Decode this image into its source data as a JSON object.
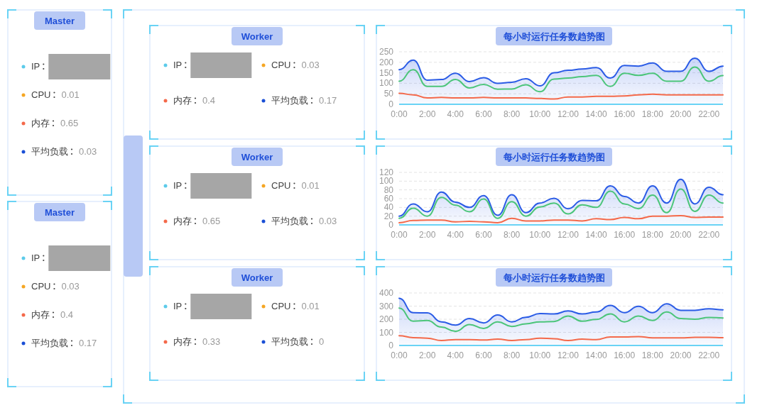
{
  "chart_data": [
    {
      "type": "other",
      "title": "Master",
      "categories": [
        "IP",
        "CPU",
        "内存",
        "平均负载"
      ],
      "values": [
        null,
        0.01,
        0.65,
        0.03
      ],
      "data_labels": true,
      "colors": [
        "#5ccbea",
        "#f5a623",
        "#f4694a",
        "#1a4fd6"
      ]
    },
    {
      "type": "other",
      "title": "Master",
      "categories": [
        "IP",
        "CPU",
        "内存",
        "平均负载"
      ],
      "values": [
        null,
        0.03,
        0.4,
        0.17
      ],
      "data_labels": true,
      "colors": [
        "#5ccbea",
        "#f5a623",
        "#f4694a",
        "#1a4fd6"
      ]
    },
    {
      "type": "other",
      "title": "Worker",
      "categories": [
        "IP",
        "CPU",
        "内存",
        "平均负载"
      ],
      "values": [
        null,
        0.03,
        0.4,
        0.17
      ],
      "data_labels": true,
      "colors": [
        "#5ccbea",
        "#f5a623",
        "#f4694a",
        "#1a4fd6"
      ]
    },
    {
      "type": "area",
      "title": "每小时运行任务数趋势图",
      "categories": [
        "0:00",
        null,
        "2:00",
        null,
        "4:00",
        null,
        "6:00",
        null,
        "8:00",
        null,
        "10:00",
        null,
        "12:00",
        null,
        "14:00",
        null,
        "16:00",
        null,
        "18:00",
        null,
        "20:00",
        null,
        "22:00",
        null
      ],
      "ylim": [
        0,
        250
      ],
      "yticks": [
        0,
        50,
        100,
        150,
        200,
        250
      ],
      "grid": "y",
      "series": [
        {
          "color": "#2b5ce6",
          "values": [
            165,
            210,
            115,
            118,
            148,
            108,
            127,
            100,
            105,
            122,
            88,
            150,
            162,
            168,
            175,
            125,
            185,
            182,
            197,
            157,
            157,
            220,
            157,
            182
          ]
        },
        {
          "type": "line",
          "color": "#4cc57a",
          "values": [
            110,
            165,
            85,
            85,
            118,
            78,
            95,
            72,
            73,
            93,
            60,
            120,
            125,
            132,
            138,
            85,
            148,
            138,
            148,
            110,
            110,
            177,
            110,
            137
          ]
        },
        {
          "type": "line",
          "color": "#f4694a",
          "values": [
            52,
            45,
            30,
            33,
            30,
            30,
            33,
            30,
            30,
            30,
            28,
            25,
            35,
            35,
            38,
            38,
            40,
            45,
            48,
            45,
            45,
            45,
            45,
            45
          ]
        }
      ]
    },
    {
      "type": "other",
      "title": "Worker",
      "categories": [
        "IP",
        "CPU",
        "内存",
        "平均负载"
      ],
      "values": [
        null,
        0.01,
        0.65,
        0.03
      ],
      "data_labels": true,
      "colors": [
        "#5ccbea",
        "#f5a623",
        "#f4694a",
        "#1a4fd6"
      ]
    },
    {
      "type": "area",
      "title": "每小时运行任务数趋势图",
      "categories": [
        "0:00",
        null,
        "2:00",
        null,
        "4:00",
        null,
        "6:00",
        null,
        "8:00",
        null,
        "10:00",
        null,
        "12:00",
        null,
        "14:00",
        null,
        "16:00",
        null,
        "18:00",
        null,
        "20:00",
        null,
        "22:00",
        null
      ],
      "ylim": [
        0,
        120
      ],
      "yticks": [
        0,
        20,
        40,
        60,
        80,
        100,
        120
      ],
      "grid": "y",
      "series": [
        {
          "color": "#2b5ce6",
          "values": [
            20,
            48,
            30,
            75,
            52,
            40,
            67,
            22,
            69,
            28,
            50,
            61,
            37,
            56,
            55,
            89,
            65,
            50,
            89,
            50,
            104,
            48,
            86,
            69
          ]
        },
        {
          "type": "line",
          "color": "#4cc57a",
          "values": [
            15,
            38,
            20,
            63,
            45,
            30,
            59,
            15,
            53,
            20,
            41,
            50,
            25,
            46,
            40,
            77,
            48,
            37,
            68,
            28,
            82,
            31,
            68,
            50
          ]
        },
        {
          "type": "line",
          "color": "#f4694a",
          "values": [
            5,
            10,
            11,
            11,
            7,
            8,
            7,
            5,
            15,
            9,
            9,
            11,
            11,
            9,
            14,
            12,
            17,
            14,
            20,
            20,
            21,
            17,
            18,
            18
          ]
        }
      ]
    },
    {
      "type": "other",
      "title": "Worker",
      "categories": [
        "IP",
        "CPU",
        "内存",
        "平均负载"
      ],
      "values": [
        null,
        0.01,
        0.33,
        0
      ],
      "data_labels": true,
      "colors": [
        "#5ccbea",
        "#f5a623",
        "#f4694a",
        "#1a4fd6"
      ]
    },
    {
      "type": "area",
      "title": "每小时运行任务数趋势图",
      "categories": [
        "0:00",
        null,
        "2:00",
        null,
        "4:00",
        null,
        "6:00",
        null,
        "8:00",
        null,
        "10:00",
        null,
        "12:00",
        null,
        "14:00",
        null,
        "16:00",
        null,
        "18:00",
        null,
        "20:00",
        null,
        "22:00",
        null
      ],
      "ylim": [
        0,
        400
      ],
      "yticks": [
        0,
        100,
        200,
        300,
        400
      ],
      "grid": "y",
      "series": [
        {
          "color": "#2b5ce6",
          "values": [
            360,
            250,
            248,
            180,
            155,
            205,
            172,
            232,
            180,
            215,
            243,
            240,
            263,
            240,
            255,
            305,
            250,
            298,
            250,
            318,
            268,
            268,
            280,
            272
          ]
        },
        {
          "type": "line",
          "color": "#4cc57a",
          "values": [
            285,
            185,
            190,
            140,
            108,
            160,
            130,
            180,
            145,
            165,
            180,
            183,
            225,
            185,
            198,
            240,
            180,
            225,
            190,
            255,
            205,
            200,
            213,
            210
          ]
        },
        {
          "type": "line",
          "color": "#f4694a",
          "values": [
            75,
            60,
            55,
            38,
            45,
            45,
            42,
            48,
            38,
            45,
            55,
            52,
            38,
            48,
            45,
            65,
            65,
            68,
            58,
            58,
            58,
            62,
            62,
            60
          ]
        }
      ]
    }
  ]
}
